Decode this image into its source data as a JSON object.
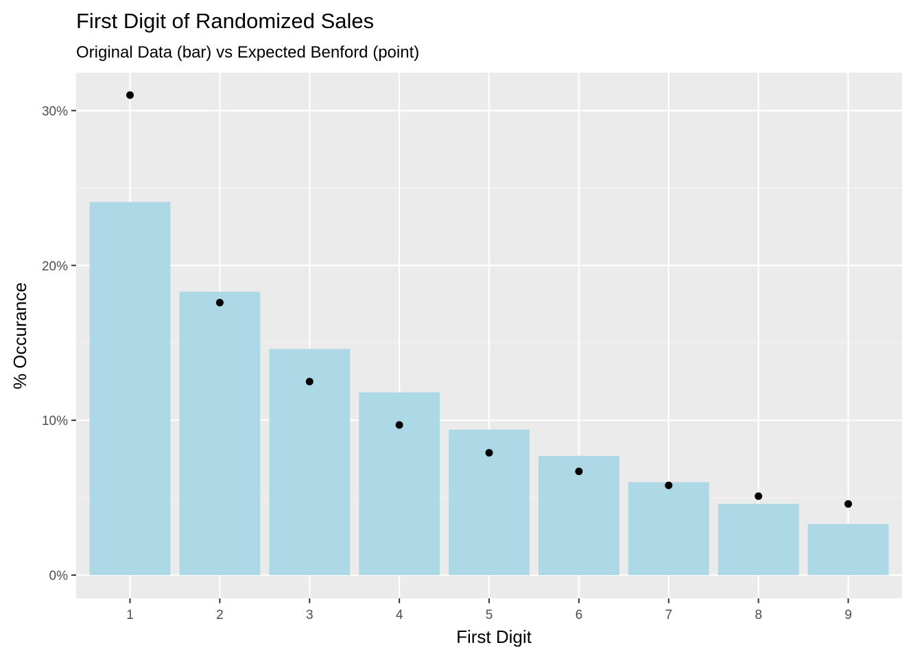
{
  "chart_data": {
    "type": "bar",
    "title": "First Digit of Randomized Sales",
    "subtitle": "Original Data (bar) vs Expected Benford (point)",
    "xlabel": "First Digit",
    "ylabel": "% Occurance",
    "categories": [
      "1",
      "2",
      "3",
      "4",
      "5",
      "6",
      "7",
      "8",
      "9"
    ],
    "series": [
      {
        "geom": "bar",
        "values": [
          0.241,
          0.183,
          0.146,
          0.118,
          0.094,
          0.077,
          0.06,
          0.046,
          0.033
        ],
        "color": "#add8e6"
      },
      {
        "geom": "point",
        "values": [
          0.31,
          0.176,
          0.125,
          0.097,
          0.079,
          0.067,
          0.058,
          0.051,
          0.046
        ],
        "color": "#000000"
      }
    ],
    "ylim": [
      -0.015,
      0.3245
    ],
    "yticks": [
      0,
      0.1,
      0.2,
      0.3
    ],
    "ytick_labels": [
      "0%",
      "10%",
      "20%",
      "30%"
    ],
    "grid": true,
    "legend": "none"
  },
  "colors": {
    "panel_background": "#ebebeb",
    "grid_major": "#ffffff",
    "grid_minor": "#f5f5f5",
    "tick_mark": "#333333",
    "tick_text": "#4d4d4d"
  }
}
